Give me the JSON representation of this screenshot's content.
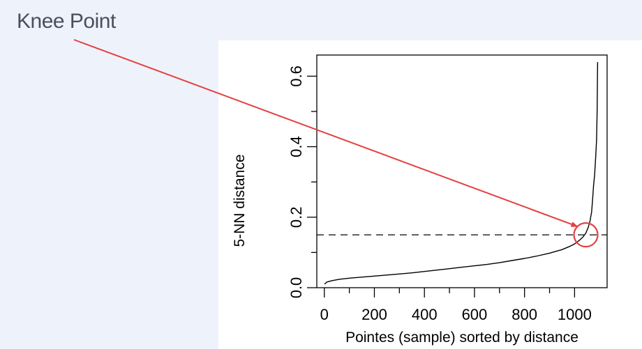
{
  "annotation": {
    "label": "Knee Point",
    "color": "#e34040"
  },
  "chart_data": {
    "type": "line",
    "title": "",
    "xlabel": "Pointes (sample) sorted by distance",
    "ylabel": "5-NN distance",
    "xlim": [
      -30,
      1130
    ],
    "ylim": [
      0.0,
      0.66
    ],
    "xticks": [
      0,
      200,
      400,
      600,
      800,
      1000
    ],
    "yticks": [
      0.0,
      0.2,
      0.4,
      0.6
    ],
    "xtick_labels": [
      "0",
      "200",
      "400",
      "600",
      "800",
      "1000"
    ],
    "ytick_labels": [
      "0.0",
      "0.2",
      "0.4",
      "0.6"
    ],
    "grid": false,
    "threshold": 0.15,
    "knee": {
      "x": 1045,
      "y": 0.15
    },
    "series": [
      {
        "color": "#000000",
        "x": [
          1,
          10,
          30,
          60,
          100,
          150,
          200,
          250,
          300,
          350,
          400,
          450,
          500,
          550,
          600,
          650,
          700,
          750,
          800,
          850,
          900,
          950,
          980,
          1000,
          1020,
          1035,
          1045,
          1055,
          1062,
          1068,
          1072,
          1076,
          1080,
          1085,
          1088,
          1090,
          1092
        ],
        "y": [
          0.01,
          0.016,
          0.02,
          0.024,
          0.027,
          0.03,
          0.033,
          0.036,
          0.039,
          0.042,
          0.046,
          0.05,
          0.054,
          0.058,
          0.062,
          0.066,
          0.071,
          0.077,
          0.083,
          0.09,
          0.098,
          0.108,
          0.117,
          0.124,
          0.135,
          0.145,
          0.155,
          0.172,
          0.19,
          0.215,
          0.25,
          0.29,
          0.32,
          0.38,
          0.42,
          0.5,
          0.64
        ]
      }
    ]
  }
}
